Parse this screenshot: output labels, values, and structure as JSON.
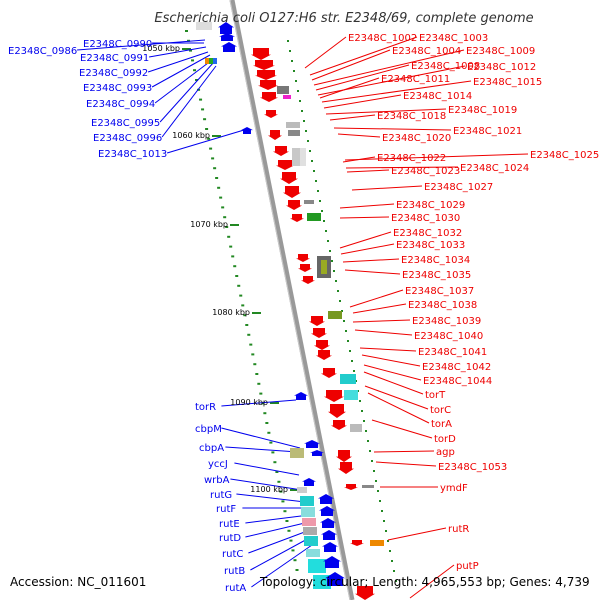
{
  "title": "Escherichia coli O127:H6 str. E2348/69, complete genome",
  "accession": "Accession: NC_011601",
  "summary": "Topology: circular; Length: 4,965,553 bp; Genes: 4,739",
  "colors": {
    "forward": "#0000ee",
    "reverse": "#ee0000",
    "backbone": "#999999",
    "tick": "#228822"
  },
  "ruler": [
    "1050 kbp",
    "1060 kbp",
    "1070 kbp",
    "1080 kbp",
    "1090 kbp",
    "1100 kbp"
  ],
  "genes_forward": [
    "E2348C_0986",
    "E2348C_0990",
    "E2348C_0991",
    "E2348C_0992",
    "E2348C_0993",
    "E2348C_0994",
    "E2348C_0995",
    "E2348C_0996",
    "E2348C_1013",
    "torR",
    "cbpM",
    "cbpA",
    "yccJ",
    "wrbA",
    "rutG",
    "rutF",
    "rutE",
    "rutD",
    "rutC",
    "rutB",
    "rutA"
  ],
  "genes_reverse": [
    "E2348C_1002",
    "E2348C_1003",
    "E2348C_1004",
    "E2348C_1009",
    "E2348C_1008",
    "E2348C_1012",
    "E2348C_1011",
    "E2348C_1015",
    "E2348C_1014",
    "E2348C_1019",
    "E2348C_1018",
    "E2348C_1021",
    "E2348C_1020",
    "E2348C_1025",
    "E2348C_1022",
    "E2348C_1024",
    "E2348C_1023",
    "E2348C_1027",
    "E2348C_1029",
    "E2348C_1030",
    "E2348C_1032",
    "E2348C_1033",
    "E2348C_1034",
    "E2348C_1035",
    "E2348C_1037",
    "E2348C_1038",
    "E2348C_1039",
    "E2348C_1040",
    "E2348C_1041",
    "E2348C_1042",
    "E2348C_1044",
    "torT",
    "torC",
    "torA",
    "torD",
    "agp",
    "E2348C_1053",
    "ymdF",
    "rutR",
    "putP"
  ]
}
